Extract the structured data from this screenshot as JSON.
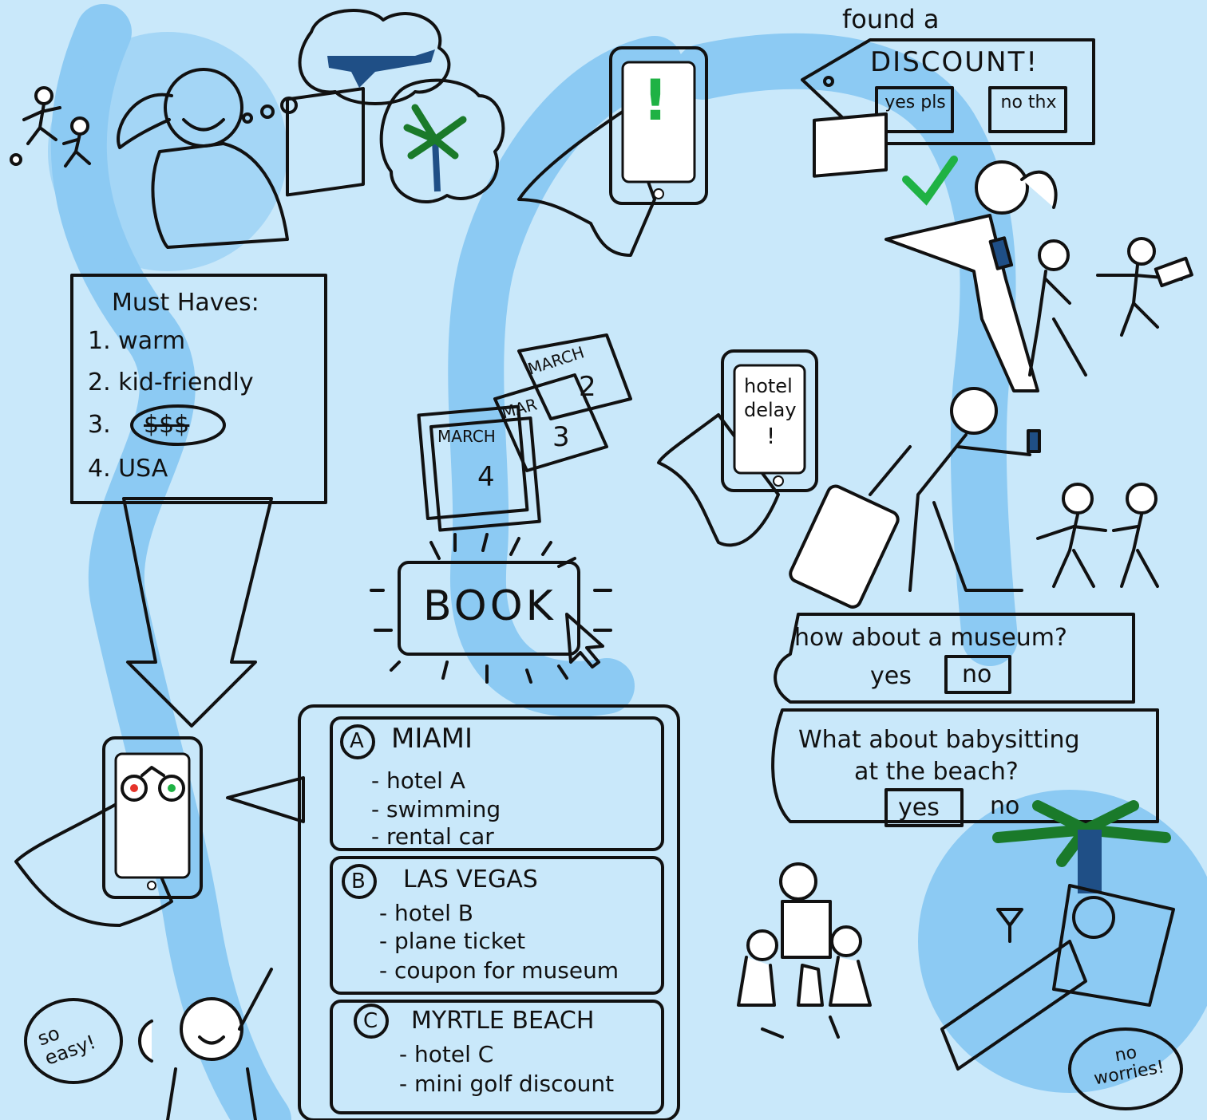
{
  "must_haves": {
    "title": "Must Haves:",
    "items": [
      "1. warm",
      "2. kid-friendly",
      "3.",
      "4. USA"
    ],
    "budget_symbol": "$$$"
  },
  "phone_screen": {
    "alert_mark": "!"
  },
  "discount_tag": {
    "prefix": "found a",
    "title": "DISCOUNT!",
    "yes_label": "yes pls",
    "no_label": "no thx"
  },
  "calendar": {
    "pages": [
      {
        "month": "MARCH",
        "day": "2"
      },
      {
        "month": "MAR",
        "day": "3"
      },
      {
        "month": "MARCH",
        "day": "4"
      }
    ]
  },
  "book_button": {
    "label": "BOOK"
  },
  "hotel_delay": {
    "line1": "hotel",
    "line2": "delay",
    "line3": "!"
  },
  "museum_prompt": {
    "question": "how about a museum?",
    "yes": "yes",
    "no": "no"
  },
  "babysitting_prompt": {
    "line1": "What about babysitting",
    "line2": "at the beach?",
    "yes": "yes",
    "no": "no"
  },
  "options": [
    {
      "badge": "A",
      "city": "MIAMI",
      "items": [
        "- hotel A",
        "- swimming",
        "- rental car"
      ]
    },
    {
      "badge": "B",
      "city": "LAS VEGAS",
      "items": [
        "- hotel B",
        "- plane ticket",
        "- coupon for museum"
      ]
    },
    {
      "badge": "C",
      "city": "MYRTLE BEACH",
      "items": [
        "- hotel C",
        "- mini golf discount"
      ]
    }
  ],
  "so_easy": "so easy!",
  "no_worries": "no worries!",
  "colors": {
    "background": "#c9e8fa",
    "path": "#8ccaf3",
    "cape": "#e8332a",
    "green": "#1fb244",
    "red": "#e5332a",
    "phone": "#1f4f86"
  }
}
